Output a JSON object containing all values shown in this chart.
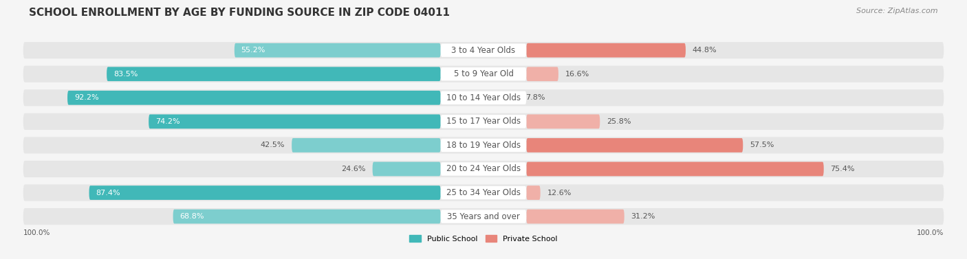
{
  "title": "SCHOOL ENROLLMENT BY AGE BY FUNDING SOURCE IN ZIP CODE 04011",
  "source": "Source: ZipAtlas.com",
  "categories": [
    "3 to 4 Year Olds",
    "5 to 9 Year Old",
    "10 to 14 Year Olds",
    "15 to 17 Year Olds",
    "18 to 19 Year Olds",
    "20 to 24 Year Olds",
    "25 to 34 Year Olds",
    "35 Years and over"
  ],
  "public_pct": [
    55.2,
    83.5,
    92.2,
    74.2,
    42.5,
    24.6,
    87.4,
    68.8
  ],
  "private_pct": [
    44.8,
    16.6,
    7.8,
    25.8,
    57.5,
    75.4,
    12.6,
    31.2
  ],
  "public_color": "#41b8b8",
  "private_color": "#e8857a",
  "public_light_color": "#7dcece",
  "private_light_color": "#f0b0a8",
  "public_label": "Public School",
  "private_label": "Private School",
  "bg_color": "#f5f5f5",
  "row_bg_color": "#e6e6e6",
  "title_fontsize": 11,
  "source_fontsize": 8,
  "label_fontsize": 8.5,
  "pct_fontsize": 8,
  "axis_label_left": "100.0%",
  "axis_label_right": "100.0%"
}
